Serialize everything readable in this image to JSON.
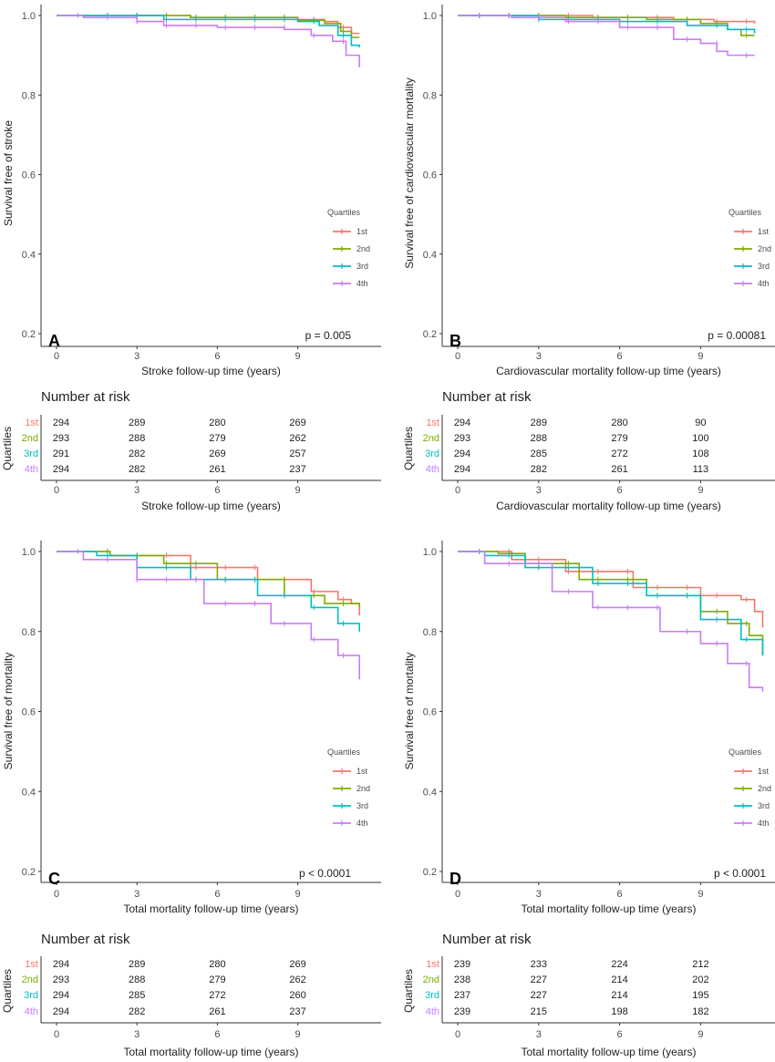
{
  "colors": {
    "1st": "#F8766D",
    "2nd": "#7CAE00",
    "3rd": "#00BFC4",
    "4th": "#C77CFF"
  },
  "chart_data": [
    {
      "type": "line",
      "panel": "A",
      "title": "",
      "ylabel": "Survival free of stroke",
      "xlabel": "Stroke follow-up time (years)",
      "yticks": [
        "0.2",
        "0.4",
        "0.6",
        "0.8",
        "1.0"
      ],
      "xticks": [
        "0",
        "3",
        "6",
        "9"
      ],
      "ylim": [
        0.2,
        1.0
      ],
      "xlim": [
        0,
        11.3
      ],
      "legend_title": "Quartiles",
      "legend_position": "right",
      "p_value": "p = 0.005",
      "series": [
        {
          "name": "1st",
          "points": [
            [
              0,
              1
            ],
            [
              5,
              0.995
            ],
            [
              9,
              0.99
            ],
            [
              10,
              0.985
            ],
            [
              10.5,
              0.97
            ],
            [
              11,
              0.955
            ],
            [
              11.3,
              0.955
            ]
          ]
        },
        {
          "name": "2nd",
          "points": [
            [
              0,
              1
            ],
            [
              5,
              0.995
            ],
            [
              9,
              0.988
            ],
            [
              10,
              0.98
            ],
            [
              10.6,
              0.96
            ],
            [
              11,
              0.945
            ],
            [
              11.3,
              0.945
            ]
          ]
        },
        {
          "name": "3rd",
          "points": [
            [
              0,
              1
            ],
            [
              4,
              0.99
            ],
            [
              9,
              0.985
            ],
            [
              9.8,
              0.975
            ],
            [
              10.5,
              0.95
            ],
            [
              11,
              0.925
            ],
            [
              11.3,
              0.92
            ]
          ]
        },
        {
          "name": "4th",
          "points": [
            [
              0,
              1
            ],
            [
              1,
              0.995
            ],
            [
              3,
              0.985
            ],
            [
              4,
              0.975
            ],
            [
              6,
              0.97
            ],
            [
              8.5,
              0.965
            ],
            [
              9.5,
              0.95
            ],
            [
              10.3,
              0.935
            ],
            [
              10.8,
              0.9
            ],
            [
              11.3,
              0.87
            ]
          ]
        }
      ],
      "risk_table": {
        "title": "Number at risk",
        "ylabel": "Quartiles",
        "xlabel": "Stroke follow-up time (years)",
        "rows": [
          {
            "name": "1st",
            "values": [
              "294",
              "289",
              "280",
              "269"
            ]
          },
          {
            "name": "2nd",
            "values": [
              "293",
              "288",
              "279",
              "262"
            ]
          },
          {
            "name": "3rd",
            "values": [
              "291",
              "282",
              "269",
              "257"
            ]
          },
          {
            "name": "4th",
            "values": [
              "294",
              "282",
              "261",
              "237"
            ]
          }
        ]
      }
    },
    {
      "type": "line",
      "panel": "B",
      "title": "",
      "ylabel": "Survival free of cardiovascular mortality",
      "xlabel": "Cardiovascular mortality follow-up time (years)",
      "yticks": [
        "0.2",
        "0.4",
        "0.6",
        "0.8",
        "1.0"
      ],
      "xticks": [
        "0",
        "3",
        "6",
        "9"
      ],
      "ylim": [
        0.2,
        1.0
      ],
      "xlim": [
        0,
        11
      ],
      "legend_title": "Quartiles",
      "legend_position": "right",
      "p_value": "p = 0.00081",
      "series": [
        {
          "name": "1st",
          "points": [
            [
              0,
              1
            ],
            [
              5,
              0.995
            ],
            [
              8,
              0.99
            ],
            [
              9.5,
              0.985
            ],
            [
              11,
              0.98
            ]
          ]
        },
        {
          "name": "2nd",
          "points": [
            [
              0,
              1
            ],
            [
              4,
              0.995
            ],
            [
              7,
              0.99
            ],
            [
              9,
              0.98
            ],
            [
              10,
              0.965
            ],
            [
              10.5,
              0.95
            ],
            [
              11,
              0.95
            ]
          ]
        },
        {
          "name": "3rd",
          "points": [
            [
              0,
              1
            ],
            [
              3,
              0.99
            ],
            [
              6,
              0.985
            ],
            [
              8.5,
              0.975
            ],
            [
              10,
              0.965
            ],
            [
              11,
              0.955
            ]
          ]
        },
        {
          "name": "4th",
          "points": [
            [
              0,
              1
            ],
            [
              2,
              0.995
            ],
            [
              4,
              0.985
            ],
            [
              6,
              0.97
            ],
            [
              8,
              0.94
            ],
            [
              9,
              0.93
            ],
            [
              9.6,
              0.91
            ],
            [
              10,
              0.9
            ],
            [
              11,
              0.9
            ]
          ]
        }
      ],
      "risk_table": {
        "title": "Number at risk",
        "ylabel": "Quartiles",
        "xlabel": "Cardiovascular mortality follow-up time (years)",
        "rows": [
          {
            "name": "1st",
            "values": [
              "294",
              "289",
              "280",
              "90"
            ]
          },
          {
            "name": "2nd",
            "values": [
              "293",
              "288",
              "279",
              "100"
            ]
          },
          {
            "name": "3rd",
            "values": [
              "294",
              "285",
              "272",
              "108"
            ]
          },
          {
            "name": "4th",
            "values": [
              "294",
              "282",
              "261",
              "113"
            ]
          }
        ]
      }
    },
    {
      "type": "line",
      "panel": "C",
      "title": "",
      "ylabel": "Survival free of mortality",
      "xlabel": "Total mortality follow-up time (years)",
      "yticks": [
        "0.2",
        "0.4",
        "0.6",
        "0.8",
        "1.0"
      ],
      "xticks": [
        "0",
        "3",
        "6",
        "9"
      ],
      "ylim": [
        0.2,
        1.0
      ],
      "xlim": [
        0,
        11.3
      ],
      "legend_title": "Quartiles",
      "legend_position": "right",
      "p_value": "p < 0.0001",
      "series": [
        {
          "name": "1st",
          "points": [
            [
              0,
              1
            ],
            [
              2,
              0.99
            ],
            [
              5,
              0.96
            ],
            [
              7.5,
              0.93
            ],
            [
              9.5,
              0.9
            ],
            [
              10.5,
              0.88
            ],
            [
              11,
              0.87
            ],
            [
              11.3,
              0.84
            ]
          ]
        },
        {
          "name": "2nd",
          "points": [
            [
              0,
              1
            ],
            [
              2,
              0.99
            ],
            [
              4,
              0.97
            ],
            [
              6,
              0.93
            ],
            [
              8.5,
              0.89
            ],
            [
              10,
              0.87
            ],
            [
              11.3,
              0.86
            ]
          ]
        },
        {
          "name": "3rd",
          "points": [
            [
              0,
              1
            ],
            [
              1.5,
              0.99
            ],
            [
              3,
              0.96
            ],
            [
              5,
              0.93
            ],
            [
              7.5,
              0.89
            ],
            [
              9.5,
              0.86
            ],
            [
              10.5,
              0.82
            ],
            [
              11.3,
              0.8
            ]
          ]
        },
        {
          "name": "4th",
          "points": [
            [
              0,
              1
            ],
            [
              1,
              0.98
            ],
            [
              3,
              0.93
            ],
            [
              5.5,
              0.87
            ],
            [
              8,
              0.82
            ],
            [
              9.5,
              0.78
            ],
            [
              10.5,
              0.74
            ],
            [
              11.3,
              0.68
            ]
          ]
        }
      ],
      "risk_table": {
        "title": "Number at risk",
        "ylabel": "Quartiles",
        "xlabel": "Total mortality follow-up time (years)",
        "rows": [
          {
            "name": "1st",
            "values": [
              "294",
              "289",
              "280",
              "269"
            ]
          },
          {
            "name": "2nd",
            "values": [
              "293",
              "288",
              "279",
              "262"
            ]
          },
          {
            "name": "3rd",
            "values": [
              "294",
              "285",
              "272",
              "260"
            ]
          },
          {
            "name": "4th",
            "values": [
              "294",
              "282",
              "261",
              "237"
            ]
          }
        ]
      }
    },
    {
      "type": "line",
      "panel": "D",
      "title": "",
      "ylabel": "Survival free of mortality",
      "xlabel": "Total mortality follow-up time (years)",
      "yticks": [
        "0.2",
        "0.4",
        "0.6",
        "0.8",
        "1.0"
      ],
      "xticks": [
        "0",
        "3",
        "6",
        "9"
      ],
      "ylim": [
        0.2,
        1.0
      ],
      "xlim": [
        0,
        11.3
      ],
      "legend_title": "Quartiles",
      "legend_position": "right",
      "p_value": "p < 0.0001",
      "series": [
        {
          "name": "1st",
          "points": [
            [
              0,
              1
            ],
            [
              2,
              0.98
            ],
            [
              4,
              0.95
            ],
            [
              6.5,
              0.91
            ],
            [
              9,
              0.89
            ],
            [
              10.5,
              0.88
            ],
            [
              11,
              0.85
            ],
            [
              11.3,
              0.81
            ]
          ]
        },
        {
          "name": "2nd",
          "points": [
            [
              0,
              1
            ],
            [
              1.5,
              0.995
            ],
            [
              2.5,
              0.97
            ],
            [
              4.5,
              0.93
            ],
            [
              7,
              0.89
            ],
            [
              9,
              0.85
            ],
            [
              10,
              0.82
            ],
            [
              10.8,
              0.79
            ],
            [
              11.3,
              0.74
            ]
          ]
        },
        {
          "name": "3rd",
          "points": [
            [
              0,
              1
            ],
            [
              1,
              0.99
            ],
            [
              2.5,
              0.96
            ],
            [
              5,
              0.92
            ],
            [
              7,
              0.89
            ],
            [
              9,
              0.83
            ],
            [
              10.5,
              0.78
            ],
            [
              11.3,
              0.74
            ]
          ]
        },
        {
          "name": "4th",
          "points": [
            [
              0,
              1
            ],
            [
              1,
              0.97
            ],
            [
              3.5,
              0.9
            ],
            [
              5,
              0.86
            ],
            [
              7.5,
              0.8
            ],
            [
              9,
              0.77
            ],
            [
              10,
              0.72
            ],
            [
              10.8,
              0.66
            ],
            [
              11.3,
              0.65
            ]
          ]
        }
      ],
      "risk_table": {
        "title": "Number at risk",
        "ylabel": "Quartiles",
        "xlabel": "Total mortality follow-up time (years)",
        "rows": [
          {
            "name": "1st",
            "values": [
              "239",
              "233",
              "224",
              "212"
            ]
          },
          {
            "name": "2nd",
            "values": [
              "238",
              "227",
              "214",
              "202"
            ]
          },
          {
            "name": "3rd",
            "values": [
              "237",
              "227",
              "214",
              "195"
            ]
          },
          {
            "name": "4th",
            "values": [
              "239",
              "215",
              "198",
              "182"
            ]
          }
        ]
      }
    }
  ]
}
